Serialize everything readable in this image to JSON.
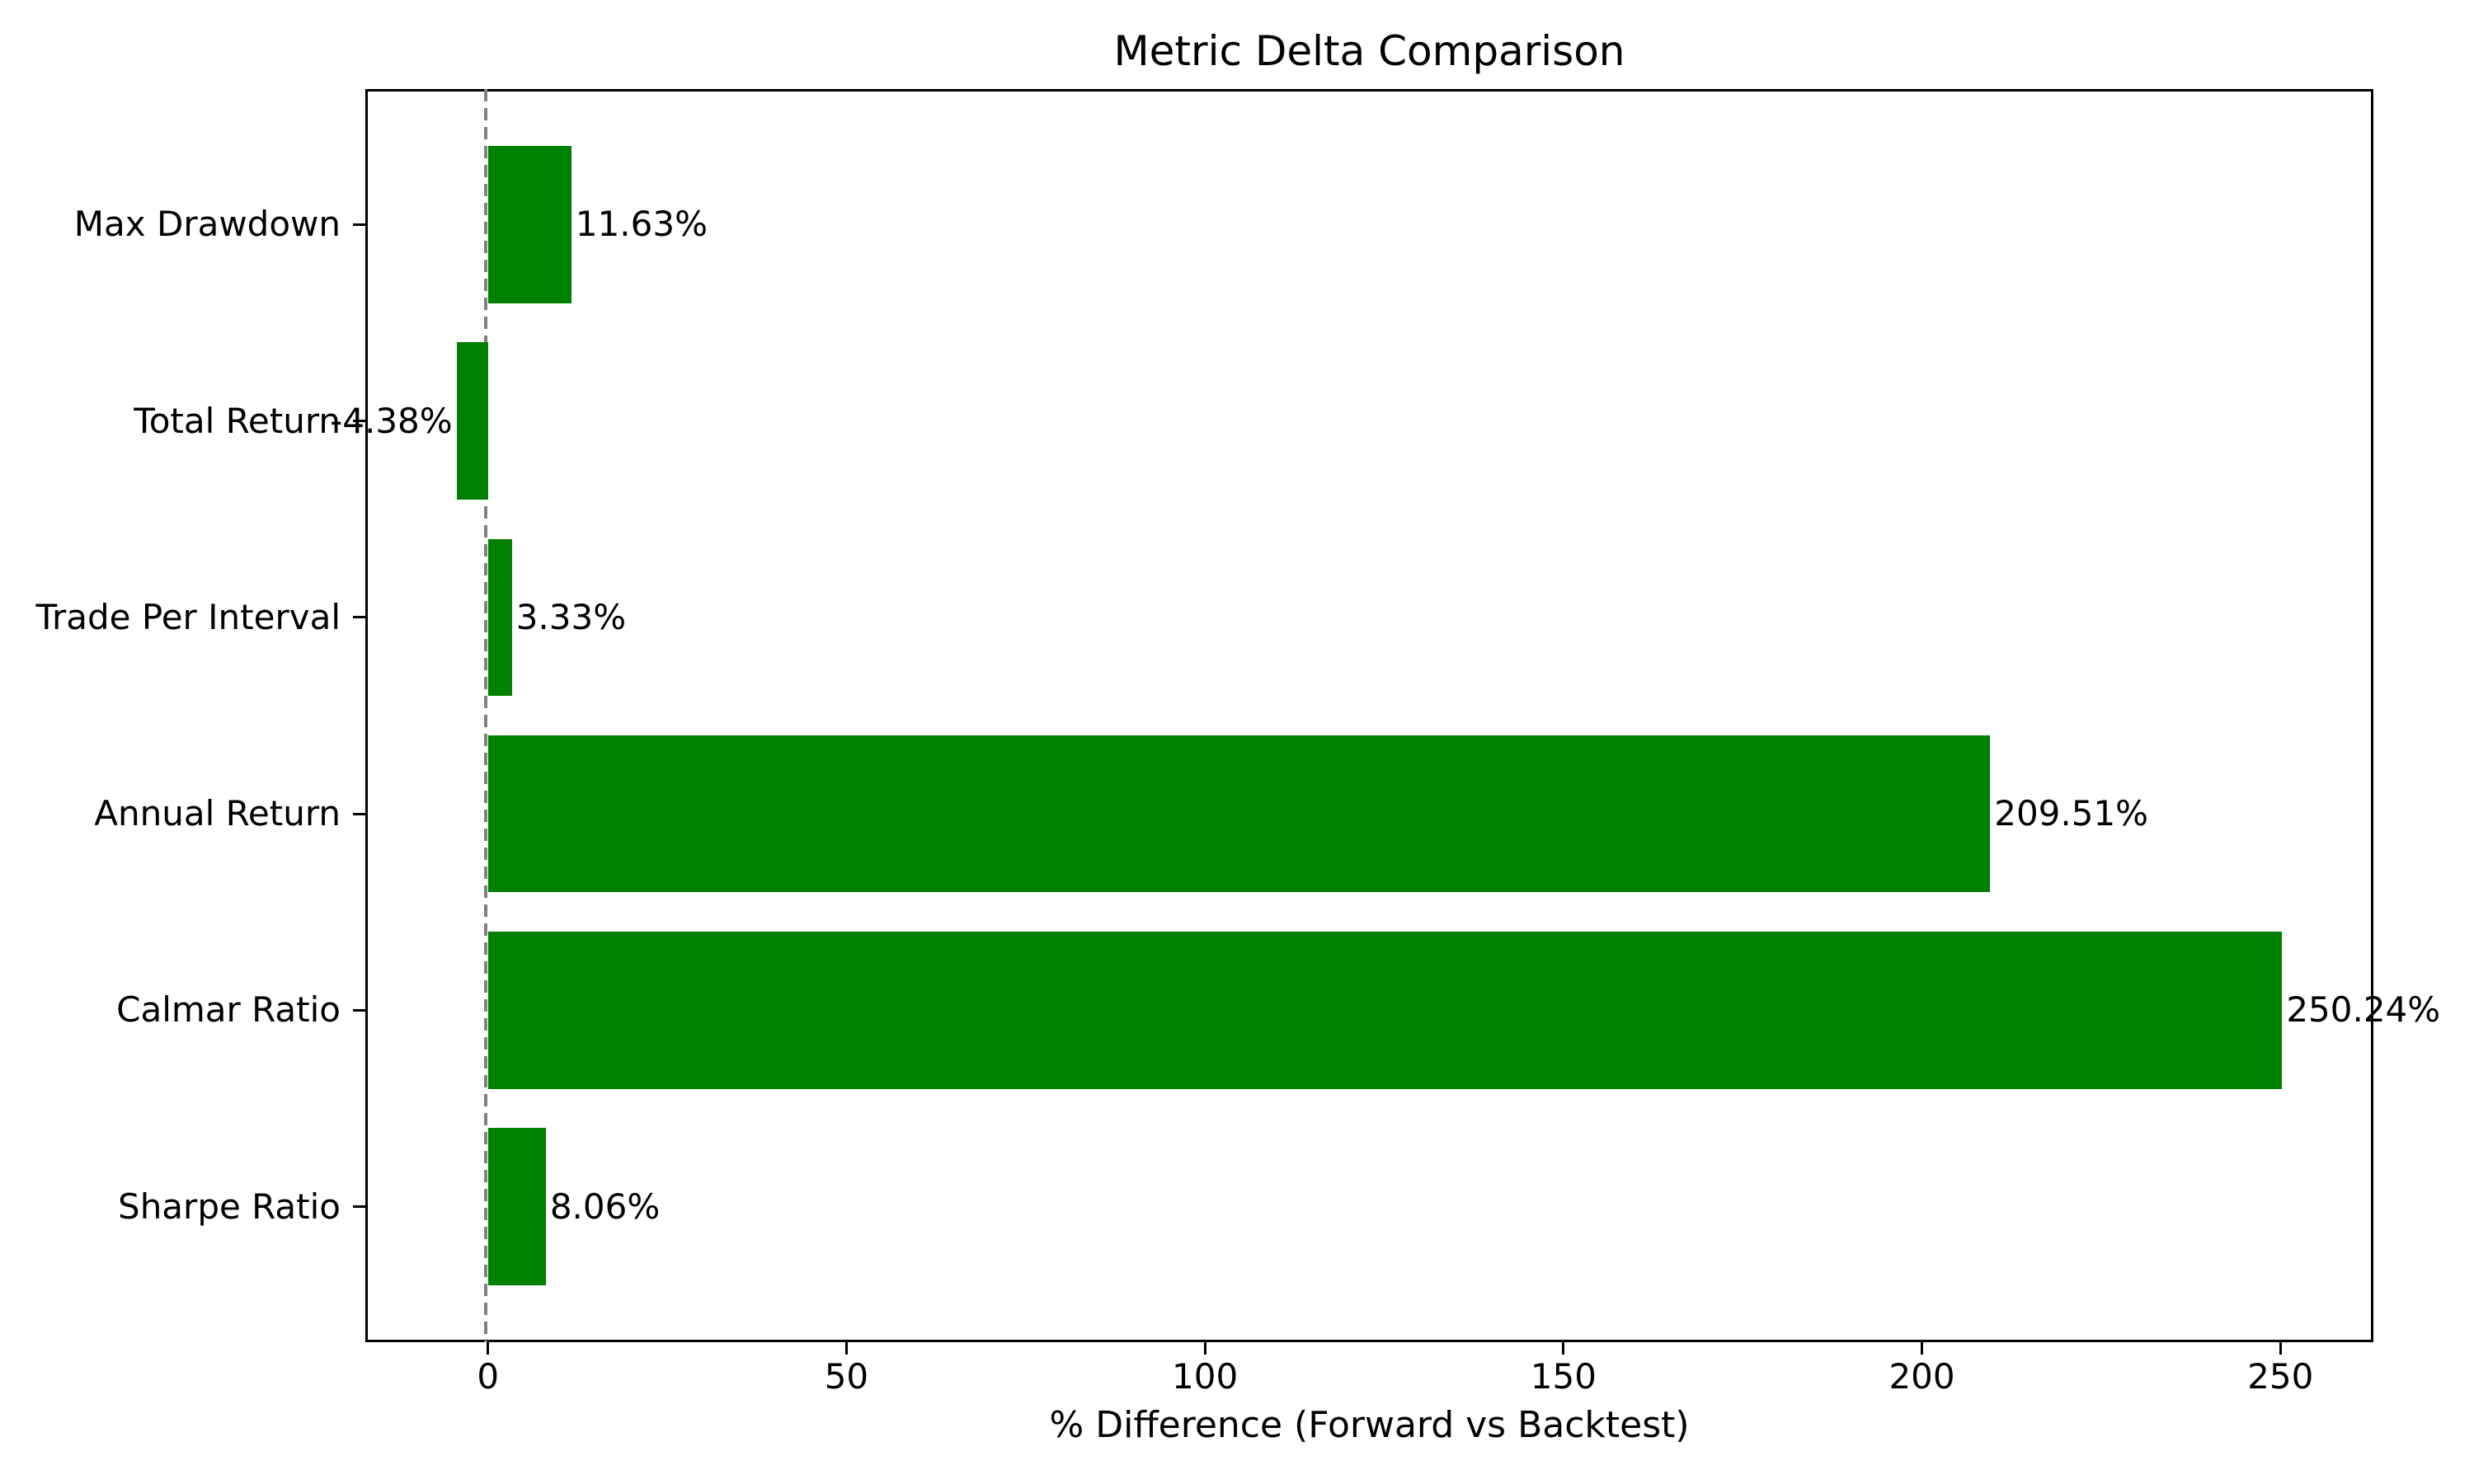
{
  "chart_data": {
    "type": "bar",
    "orientation": "horizontal",
    "title": "Metric Delta Comparison",
    "xlabel": "% Difference (Forward vs Backtest)",
    "categories": [
      "Max Drawdown",
      "Total Return",
      "Trade Per Interval",
      "Annual Return",
      "Calmar Ratio",
      "Sharpe Ratio"
    ],
    "values": [
      11.63,
      -4.38,
      3.33,
      209.51,
      250.24,
      8.06
    ],
    "value_labels": [
      "11.63%",
      "-4.38%",
      "3.33%",
      "209.51%",
      "250.24%",
      "8.06%"
    ],
    "x_ticks": [
      0,
      50,
      100,
      150,
      200,
      250
    ],
    "x_tick_labels": [
      "0",
      "50",
      "100",
      "150",
      "200",
      "250"
    ],
    "xlim": [
      -17.11,
      262.97
    ],
    "bar_color": "#008000",
    "zero_line_color": "#808080",
    "zero_line_value": 0,
    "grid": false,
    "legend": null
  }
}
